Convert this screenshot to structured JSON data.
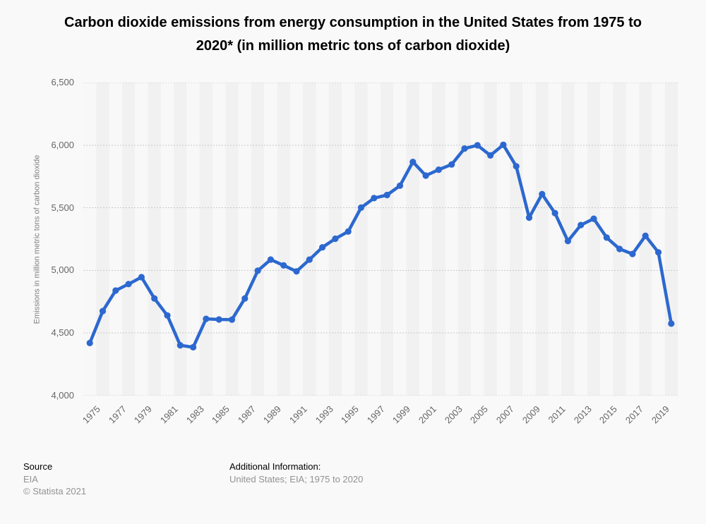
{
  "title": {
    "line1": "Carbon dioxide emissions from energy consumption in the United States from 1975 to",
    "line2": "2020* (in million metric tons of carbon dioxide)"
  },
  "chart_data": {
    "type": "line",
    "title": "Carbon dioxide emissions from energy consumption in the United States from 1975 to 2020* (in million metric tons of carbon dioxide)",
    "xlabel": "",
    "ylabel": "Emissions in million metric tons of carbon dioxide",
    "ylim": [
      4000,
      6500
    ],
    "grid": "horizontal-dotted",
    "legend": "none",
    "x": [
      1975,
      1976,
      1977,
      1978,
      1979,
      1980,
      1981,
      1982,
      1983,
      1984,
      1985,
      1986,
      1987,
      1988,
      1989,
      1990,
      1991,
      1992,
      1993,
      1994,
      1995,
      1996,
      1997,
      1998,
      1999,
      2000,
      2001,
      2002,
      2003,
      2004,
      2005,
      2006,
      2007,
      2008,
      2009,
      2010,
      2011,
      2012,
      2013,
      2014,
      2015,
      2016,
      2017,
      2018,
      2019,
      2020
    ],
    "series": [
      {
        "name": "CO2 emissions from energy consumption",
        "color": "#2c68cf",
        "values": [
          4420,
          4675,
          4839,
          4891,
          4946,
          4776,
          4640,
          4402,
          4386,
          4613,
          4608,
          4607,
          4776,
          4997,
          5086,
          5040,
          4992,
          5086,
          5184,
          5253,
          5310,
          5501,
          5577,
          5602,
          5676,
          5866,
          5757,
          5804,
          5846,
          5973,
          5999,
          5918,
          6003,
          5831,
          5421,
          5609,
          5457,
          5234,
          5362,
          5413,
          5262,
          5171,
          5131,
          5276,
          5144,
          4575
        ]
      }
    ],
    "y_ticks": [
      {
        "value": 6500,
        "label": "6,500"
      },
      {
        "value": 6000,
        "label": "6,000"
      },
      {
        "value": 5500,
        "label": "5,500"
      },
      {
        "value": 5000,
        "label": "5,000"
      },
      {
        "value": 4500,
        "label": "4,500"
      },
      {
        "value": 4000,
        "label": "4,000"
      }
    ],
    "x_ticks": [
      "1975",
      "1977",
      "1979",
      "1981",
      "1983",
      "1985",
      "1987",
      "1989",
      "1991",
      "1993",
      "1995",
      "1997",
      "1999",
      "2001",
      "2003",
      "2005",
      "2007",
      "2009",
      "2011",
      "2013",
      "2015",
      "2017",
      "2019"
    ],
    "colors": {
      "line": "#2c68cf",
      "gridline": "#c9c9c9",
      "band_light": "#f8f8f8",
      "band_dark": "#f1f1f1",
      "background": "#f9f9f9"
    }
  },
  "footer": {
    "source_label": "Source",
    "source_value": "EIA",
    "copyright": "© Statista 2021",
    "additional_label": "Additional Information:",
    "additional_value": "United States; EIA; 1975 to 2020"
  }
}
